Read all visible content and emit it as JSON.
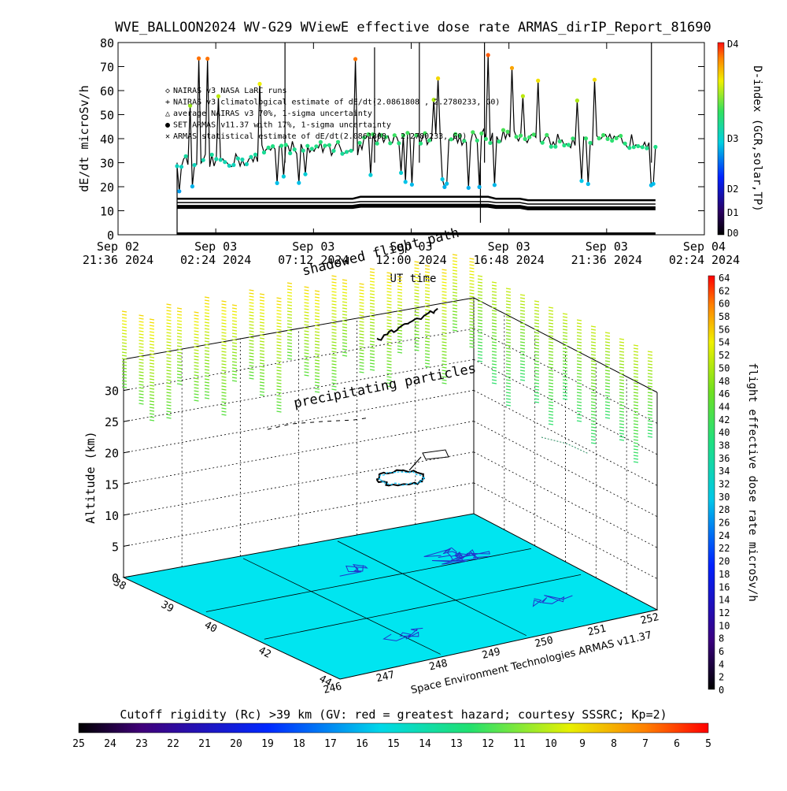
{
  "title": "WVE_BALLOON2024 WV-G29 WViewE effective dose rate ARMAS_dirIP_Report_81690",
  "colors": {
    "surface": "#00e5f0",
    "map_line": "#2233cc",
    "dose_line": "#000000"
  },
  "chart_data": [
    {
      "type": "line",
      "name": "top_time_series",
      "ylabel": "dE/dt microSv/h",
      "xlabel": "UT time",
      "ylim": [
        0,
        80
      ],
      "yticks": [
        0,
        10,
        20,
        30,
        40,
        50,
        60,
        70,
        80
      ],
      "x_ticks": [
        {
          "line1": "Sep 02",
          "line2": "21:36 2024",
          "t": 0
        },
        {
          "line1": "Sep 03",
          "line2": "02:24 2024",
          "t": 4.8
        },
        {
          "line1": "Sep 03",
          "line2": "07:12 2024",
          "t": 9.6
        },
        {
          "line1": "Sep 03",
          "line2": "12:00 2024",
          "t": 14.4
        },
        {
          "line1": "Sep 03",
          "line2": "16:48 2024",
          "t": 19.2
        },
        {
          "line1": "Sep 03",
          "line2": "21:36 2024",
          "t": 24.0
        },
        {
          "line1": "Sep 04",
          "line2": "02:24 2024",
          "t": 28.8
        }
      ],
      "xlim_hours": [
        0,
        28.8
      ],
      "data_start_hours": 2.9,
      "data_end_hours": 26.4,
      "legend": [
        {
          "symbol": "◇",
          "text": "NAIRAS v3 NASA LaRC runs"
        },
        {
          "symbol": "+",
          "text": "NAIRAS v3 climatological estimate of dE/dt(2.0861808 , 2.2780233, G0)"
        },
        {
          "symbol": "△",
          "text": "average NAIRAS v3 70%, 1-sigma uncertainty"
        },
        {
          "symbol": "●",
          "text": "SET ARMAS v11.37 with 17%, 1-sigma uncertainty"
        },
        {
          "symbol": "✕",
          "text": "ARMAS statistical estimate of dE/dt(2.0861808 , 2.2780233, G0)"
        }
      ],
      "series": [
        {
          "name": "ARMAS baseline band",
          "values_approx": [
            31,
            39,
            42,
            35
          ]
        },
        {
          "name": "NAIRAS climatological",
          "values_approx": [
            15,
            14,
            15,
            14
          ]
        },
        {
          "name": "NAIRAS low band",
          "values_approx": [
            11.5,
            11.0,
            12.0,
            12.0
          ]
        }
      ],
      "right_axis": {
        "label": "D-index (GCR,solar,TP)",
        "ticks": [
          "D4",
          "D3",
          "D2",
          "D1",
          "D0"
        ]
      }
    },
    {
      "type": "scatter",
      "name": "3d_trajectory",
      "zlabel": "Altitude (km)",
      "zlim": [
        0,
        35
      ],
      "zticks": [
        0,
        5,
        10,
        15,
        20,
        25,
        30
      ],
      "lat_ticks": [
        38,
        39,
        40,
        42,
        44
      ],
      "lon_ticks": [
        246,
        247,
        248,
        249,
        250,
        251,
        252
      ],
      "annotations": {
        "precip": "precipitating particles",
        "shadow": "shadowed flight path",
        "credit": "Space Environment Technologies ARMAS v11.37"
      },
      "colorbar": {
        "label": "flight effective dose rate microSv/h",
        "ticks": [
          0,
          2,
          4,
          6,
          8,
          10,
          12,
          14,
          16,
          18,
          20,
          22,
          24,
          26,
          28,
          30,
          32,
          34,
          36,
          38,
          40,
          42,
          44,
          46,
          48,
          50,
          52,
          54,
          56,
          58,
          60,
          62,
          64
        ]
      }
    }
  ],
  "bottom_colorbar": {
    "label": "Cutoff rigidity (Rc) >39 km (GV: red = greatest hazard; courtesy SSSRC; Kp=2)",
    "ticks": [
      25,
      24,
      23,
      22,
      21,
      20,
      19,
      18,
      17,
      16,
      15,
      14,
      13,
      12,
      11,
      10,
      9,
      8,
      7,
      6,
      5
    ]
  }
}
